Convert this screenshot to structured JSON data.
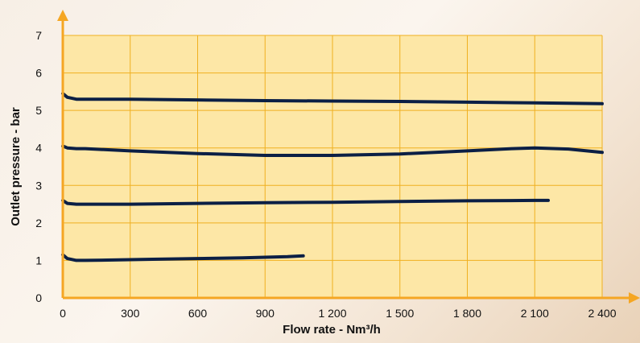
{
  "chart_data": {
    "type": "line",
    "title": "",
    "xlabel": "Flow rate - Nm³/h",
    "ylabel": "Outlet pressure - bar",
    "xlim": [
      0,
      2400
    ],
    "ylim": [
      0,
      7
    ],
    "x_ticks": [
      0,
      300,
      600,
      900,
      1200,
      1500,
      1800,
      2100,
      2400
    ],
    "x_tick_labels": [
      "0",
      "300",
      "600",
      "900",
      "1 200",
      "1 500",
      "1 800",
      "2 100",
      "2 400"
    ],
    "y_ticks": [
      0,
      1,
      2,
      3,
      4,
      5,
      6,
      7
    ],
    "y_tick_labels": [
      "0",
      "1",
      "2",
      "3",
      "4",
      "5",
      "6",
      "7"
    ],
    "grid": true,
    "legend": "none",
    "colors": {
      "plot_background": "#fde7a6",
      "grid": "#f0b020",
      "axis": "#f5a623",
      "series": "#0b1f45"
    },
    "series": [
      {
        "x": [
          0,
          20,
          60,
          100,
          200,
          400,
          600,
          800,
          1000,
          1070
        ],
        "y": [
          1.15,
          1.05,
          1.0,
          1.0,
          1.01,
          1.03,
          1.05,
          1.07,
          1.1,
          1.12
        ]
      },
      {
        "x": [
          0,
          20,
          60,
          100,
          300,
          600,
          900,
          1200,
          1500,
          1800,
          2100,
          2160
        ],
        "y": [
          2.6,
          2.52,
          2.5,
          2.5,
          2.5,
          2.52,
          2.54,
          2.55,
          2.57,
          2.59,
          2.6,
          2.6
        ]
      },
      {
        "x": [
          0,
          20,
          60,
          100,
          300,
          600,
          900,
          1200,
          1500,
          1800,
          2000,
          2100,
          2250,
          2400
        ],
        "y": [
          4.05,
          4.0,
          3.98,
          3.98,
          3.92,
          3.85,
          3.8,
          3.8,
          3.84,
          3.92,
          3.98,
          4.0,
          3.97,
          3.88
        ]
      },
      {
        "x": [
          0,
          20,
          60,
          100,
          300,
          600,
          900,
          1200,
          1500,
          1800,
          2100,
          2400
        ],
        "y": [
          5.45,
          5.35,
          5.3,
          5.3,
          5.3,
          5.28,
          5.26,
          5.25,
          5.24,
          5.22,
          5.2,
          5.18
        ]
      }
    ]
  }
}
